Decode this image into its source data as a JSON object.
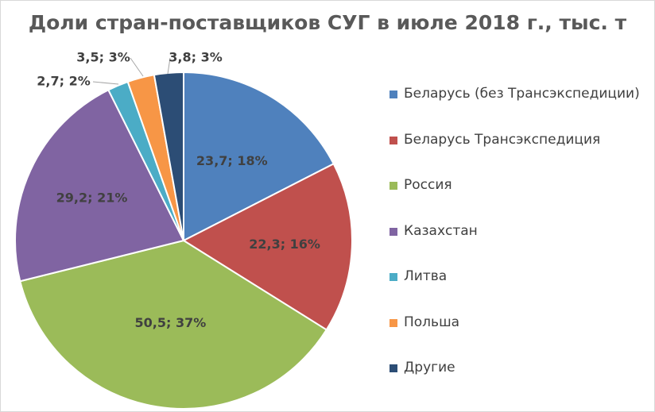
{
  "chart_data": {
    "type": "pie",
    "title": "Доли стран-поставщиков СУГ в июле 2018 г., тыс. т",
    "legend_position": "right",
    "slices": [
      {
        "name": "Беларусь (без Трансэкспедиции)",
        "value": 23.7,
        "percent": 18,
        "label": "23,7; 18%",
        "color": "#4f81bd"
      },
      {
        "name": "Беларусь Трансэкспедиция",
        "value": 22.3,
        "percent": 16,
        "label": "22,3; 16%",
        "color": "#c0504d"
      },
      {
        "name": "Россия",
        "value": 50.5,
        "percent": 37,
        "label": "50,5; 37%",
        "color": "#9bbb59"
      },
      {
        "name": "Казахстан",
        "value": 29.2,
        "percent": 21,
        "label": "29,2; 21%",
        "color": "#8064a2"
      },
      {
        "name": "Литва",
        "value": 2.7,
        "percent": 2,
        "label": "2,7; 2%",
        "color": "#4bacc6"
      },
      {
        "name": "Польша",
        "value": 3.5,
        "percent": 3,
        "label": "3,5; 3%",
        "color": "#f79646"
      },
      {
        "name": "Другие",
        "value": 3.8,
        "percent": 3,
        "label": "3,8; 3%",
        "color": "#2c4d75"
      }
    ]
  }
}
